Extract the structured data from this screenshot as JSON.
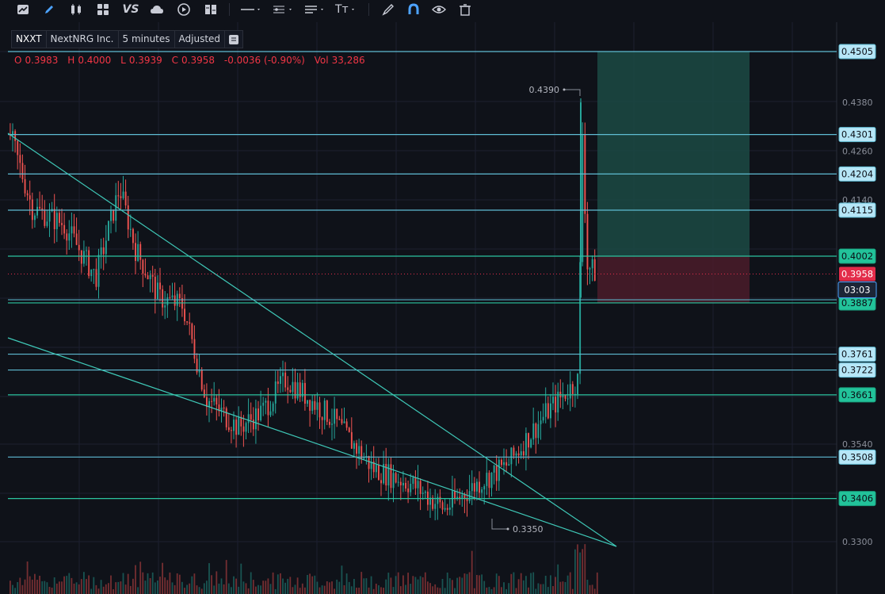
{
  "toolbar": {
    "icons": [
      "chart-type-icon",
      "pencil-icon",
      "candles-icon",
      "grid-icon",
      "vs-icon",
      "cloud-icon",
      "replay-icon",
      "columns-icon",
      "line-tool-icon",
      "indicator-tool-icon",
      "align-tool-icon",
      "text-tool-icon",
      "brush-icon",
      "magnet-icon",
      "eye-icon",
      "trash-icon"
    ],
    "vs_label": "VS",
    "text_tool_label": "Tт"
  },
  "header": {
    "ticker": "NXXT",
    "company": "NextNRG Inc.",
    "interval": "5 minutes",
    "adjustment": "Adjusted"
  },
  "ohlc": {
    "o_label": "O",
    "o": "0.3983",
    "h_label": "H",
    "h": "0.4000",
    "l_label": "L",
    "l": "0.3939",
    "c_label": "C",
    "c": "0.3958",
    "change": "-0.0036 (-0.90%)",
    "vol_label": "Vol",
    "vol": "33,286"
  },
  "colors": {
    "background": "#0f1219",
    "grid": "#1c2030",
    "up": "#26a69a",
    "down": "#ef5350",
    "hline_blue": "#5fbcd3",
    "hline_green": "#2bc4a0",
    "trendline": "#3fc9b8",
    "tag_blue_bg": "#b6e6f7",
    "tag_green_bg": "#22c39a",
    "price_bg": "#e32c4a",
    "timer_bg": "#1c2536",
    "profit_zone": "#1b4a44",
    "loss_zone": "#4a1c2a"
  },
  "chart_data": {
    "type": "candlestick",
    "symbol": "NXXT",
    "interval": "5 minutes",
    "ylim": [
      0.3255,
      0.4535
    ],
    "y_ticks": [
      "0.4380",
      "0.4260",
      "0.4140",
      "0.3540",
      "0.3300"
    ],
    "horizontal_levels": [
      {
        "value": 0.4505,
        "label": "0.4505",
        "style": "blue"
      },
      {
        "value": 0.4301,
        "label": "0.4301",
        "style": "blue"
      },
      {
        "value": 0.4204,
        "label": "0.4204",
        "style": "blue"
      },
      {
        "value": 0.4115,
        "label": "0.4115",
        "style": "blue"
      },
      {
        "value": 0.4002,
        "label": "0.4002",
        "style": "green"
      },
      {
        "value": 0.3887,
        "label": "0.3887",
        "style": "green"
      },
      {
        "value": 0.3761,
        "label": "0.3761",
        "style": "blue"
      },
      {
        "value": 0.3722,
        "label": "0.3722",
        "style": "blue"
      },
      {
        "value": 0.3661,
        "label": "0.3661",
        "style": "green"
      },
      {
        "value": 0.3508,
        "label": "0.3508",
        "style": "blue"
      },
      {
        "value": 0.3406,
        "label": "0.3406",
        "style": "green"
      }
    ],
    "current_price": "0.3958",
    "countdown": "03:03",
    "high_marker": "0.4390",
    "low_marker": "0.3350",
    "position": {
      "entry": 0.4002,
      "target": 0.4505,
      "stop": 0.3887
    },
    "trend_series_approx": [
      0.43,
      0.412,
      0.408,
      0.395,
      0.417,
      0.402,
      0.39,
      0.388,
      0.365,
      0.358,
      0.362,
      0.37,
      0.36,
      0.348,
      0.344,
      0.338,
      0.344,
      0.349,
      0.362,
      0.37,
      0.438,
      0.398,
      0.3958
    ]
  }
}
